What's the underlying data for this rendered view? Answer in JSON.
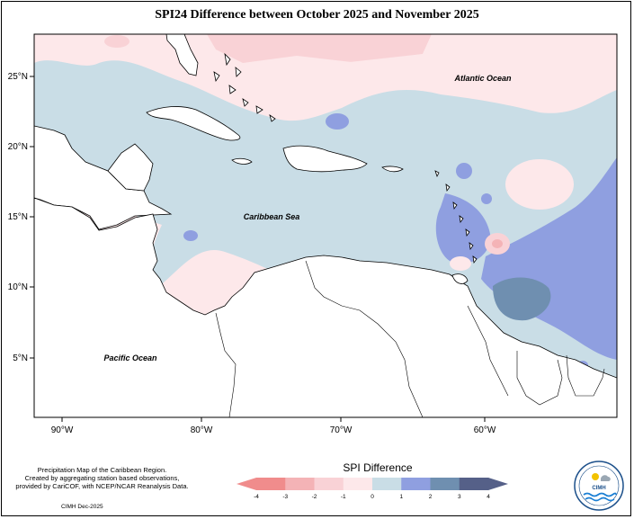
{
  "title": "SPI24 Difference between October 2025 and November 2025",
  "lat_labels": [
    "25°N",
    "20°N",
    "15°N",
    "10°N",
    "5°N"
  ],
  "lon_labels": [
    "90°W",
    "80°W",
    "70°W",
    "60°W"
  ],
  "ocean_labels": {
    "atlantic": "Atlantic Ocean",
    "caribbean": "Caribbean Sea",
    "pacific": "Pacific Ocean"
  },
  "credit": {
    "line1": "Precipitation Map of the Caribbean Region.",
    "line2": "Created by aggregating station based observations,",
    "line3": "provided by CariCOF, with NCEP/NCAR Reanalysis Data.",
    "date": "CIMH Dec-2025"
  },
  "legend": {
    "title": "SPI Difference",
    "ticks": [
      "-4",
      "-3",
      "-2",
      "-1",
      "0",
      "1",
      "2",
      "3",
      "4"
    ],
    "colors": [
      "#f08c8c",
      "#f4b3b6",
      "#f9d2d6",
      "#fde8ea",
      "#c9dde6",
      "#8f9fe0",
      "#6f8fb0",
      "#556088"
    ]
  },
  "logo": {
    "text": "CIMH",
    "icon": "cimh-logo-icon"
  },
  "colors": {
    "land": "#ffffff",
    "coast": "#000000",
    "neg1": "#fde8ea",
    "neg2": "#f9d2d6",
    "pos1": "#c9dde6",
    "pos2": "#8f9fe0",
    "pos3": "#6f8fb0"
  }
}
